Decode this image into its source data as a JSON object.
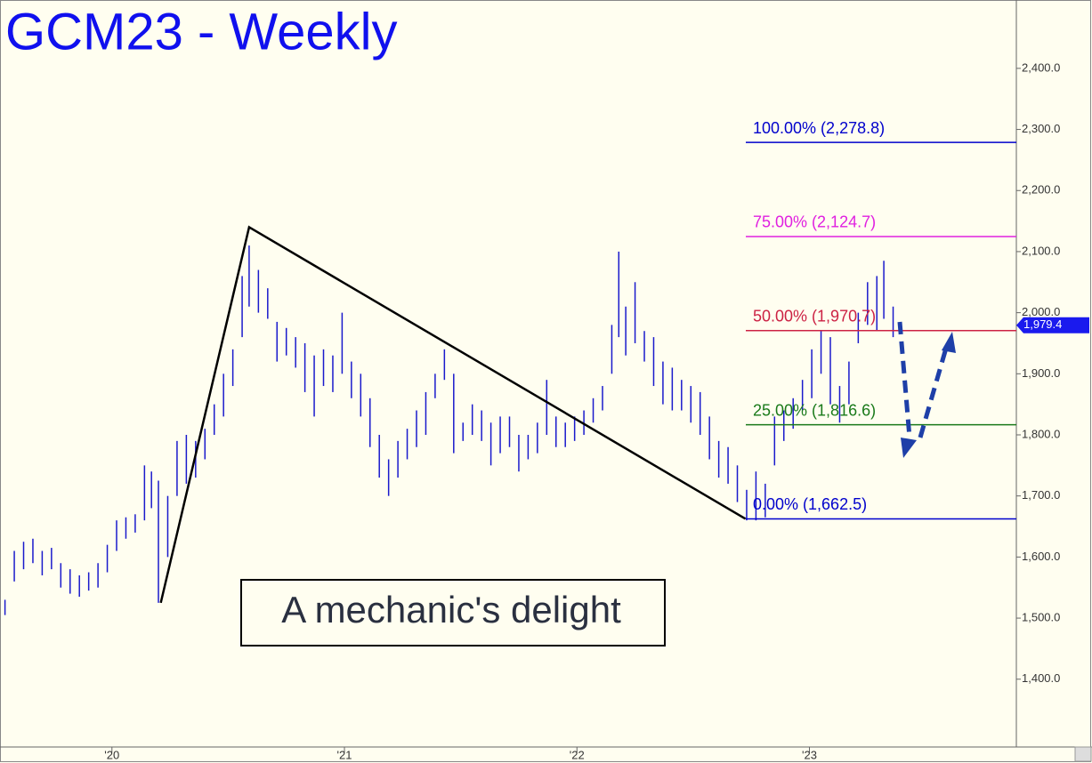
{
  "chart_data": {
    "type": "ohlc",
    "title": "GCM23 - Weekly",
    "annotation": "A mechanic's delight",
    "color": "#1a1acc",
    "xlim": [
      2019.53,
      2023.89
    ],
    "ylim": [
      1289,
      2509
    ],
    "xticks": [
      {
        "value": 2020,
        "label": "'20"
      },
      {
        "value": 2021,
        "label": "'21"
      },
      {
        "value": 2022,
        "label": "'22"
      },
      {
        "value": 2023,
        "label": "'23"
      }
    ],
    "yticks": [
      {
        "value": 1400,
        "label": "1,400.0"
      },
      {
        "value": 1500,
        "label": "1,500.0"
      },
      {
        "value": 1600,
        "label": "1,600.0"
      },
      {
        "value": 1700,
        "label": "1,700.0"
      },
      {
        "value": 1800,
        "label": "1,800.0"
      },
      {
        "value": 1900,
        "label": "1,900.0"
      },
      {
        "value": 2000,
        "label": "2,000.0"
      },
      {
        "value": 2100,
        "label": "2,100.0"
      },
      {
        "value": 2200,
        "label": "2,200.0"
      },
      {
        "value": 2300,
        "label": "2,300.0"
      },
      {
        "value": 2400,
        "label": "2,400.0"
      }
    ],
    "x": [
      2019.54,
      2019.58,
      2019.62,
      2019.66,
      2019.7,
      2019.74,
      2019.78,
      2019.82,
      2019.86,
      2019.9,
      2019.94,
      2019.98,
      2020.02,
      2020.06,
      2020.1,
      2020.14,
      2020.17,
      2020.2,
      2020.24,
      2020.28,
      2020.32,
      2020.36,
      2020.4,
      2020.44,
      2020.48,
      2020.52,
      2020.56,
      2020.59,
      2020.63,
      2020.67,
      2020.71,
      2020.75,
      2020.79,
      2020.83,
      2020.87,
      2020.91,
      2020.95,
      2020.99,
      2021.03,
      2021.07,
      2021.11,
      2021.15,
      2021.19,
      2021.23,
      2021.27,
      2021.31,
      2021.35,
      2021.39,
      2021.43,
      2021.47,
      2021.51,
      2021.55,
      2021.59,
      2021.63,
      2021.67,
      2021.71,
      2021.75,
      2021.79,
      2021.83,
      2021.87,
      2021.91,
      2021.95,
      2021.99,
      2022.03,
      2022.07,
      2022.11,
      2022.15,
      2022.18,
      2022.21,
      2022.25,
      2022.29,
      2022.33,
      2022.37,
      2022.41,
      2022.45,
      2022.49,
      2022.53,
      2022.57,
      2022.61,
      2022.65,
      2022.69,
      2022.73,
      2022.77,
      2022.81,
      2022.85,
      2022.89,
      2022.93,
      2022.97,
      2023.01,
      2023.05,
      2023.09,
      2023.13,
      2023.17,
      2023.21,
      2023.25,
      2023.29,
      2023.32,
      2023.36
    ],
    "high": [
      1530,
      1610,
      1625,
      1630,
      1610,
      1615,
      1590,
      1580,
      1570,
      1575,
      1590,
      1620,
      1660,
      1665,
      1670,
      1750,
      1740,
      1725,
      1700,
      1790,
      1800,
      1790,
      1810,
      1850,
      1900,
      1940,
      2060,
      2110,
      2070,
      2040,
      1985,
      1975,
      1960,
      1950,
      1930,
      1940,
      1930,
      2000,
      1920,
      1900,
      1860,
      1800,
      1760,
      1790,
      1810,
      1840,
      1870,
      1900,
      1940,
      1900,
      1820,
      1850,
      1840,
      1820,
      1830,
      1830,
      1800,
      1800,
      1820,
      1890,
      1830,
      1820,
      1830,
      1840,
      1860,
      1880,
      1980,
      2100,
      2010,
      2050,
      1970,
      1960,
      1920,
      1910,
      1890,
      1880,
      1870,
      1830,
      1790,
      1780,
      1750,
      1710,
      1740,
      1720,
      1830,
      1840,
      1860,
      1890,
      1940,
      1970,
      1960,
      1880,
      1920,
      2000,
      2050,
      2060,
      2085,
      2010
    ],
    "low": [
      1505,
      1560,
      1580,
      1590,
      1570,
      1580,
      1550,
      1540,
      1535,
      1545,
      1550,
      1575,
      1610,
      1630,
      1640,
      1660,
      1680,
      1525,
      1600,
      1700,
      1720,
      1730,
      1760,
      1800,
      1830,
      1880,
      1960,
      2010,
      2000,
      1990,
      1920,
      1930,
      1910,
      1870,
      1830,
      1880,
      1870,
      1900,
      1860,
      1830,
      1780,
      1730,
      1700,
      1730,
      1760,
      1780,
      1800,
      1860,
      1890,
      1770,
      1790,
      1800,
      1790,
      1750,
      1770,
      1780,
      1740,
      1760,
      1770,
      1800,
      1780,
      1780,
      1790,
      1800,
      1820,
      1840,
      1900,
      1960,
      1930,
      1950,
      1920,
      1880,
      1850,
      1840,
      1840,
      1820,
      1800,
      1760,
      1730,
      1720,
      1690,
      1660,
      1660,
      1665,
      1750,
      1790,
      1810,
      1840,
      1860,
      1900,
      1850,
      1820,
      1850,
      1950,
      1980,
      1970,
      1990,
      1960
    ],
    "pattern_line": {
      "x": [
        2020.21,
        2020.59,
        2022.725
      ],
      "values": [
        1525,
        2140,
        1662.5
      ],
      "color": "#000000"
    },
    "levels": [
      {
        "value": 2278.8,
        "label": "100.00% (2,278.8)",
        "color": "#0000cc"
      },
      {
        "value": 2124.7,
        "label": "75.00% (2,124.7)",
        "color": "#e020e0"
      },
      {
        "value": 1970.7,
        "label": "50.00% (1,970.7)",
        "color": "#cc2244"
      },
      {
        "value": 1816.6,
        "label": "25.00% (1,816.6)",
        "color": "#1a7a1a"
      },
      {
        "value": 1662.5,
        "label": "0.00% (1,662.5)",
        "color": "#0000cc"
      }
    ],
    "last_price": {
      "value": 1979.4,
      "label": "1,979.4",
      "color": "#1a1aee"
    }
  }
}
